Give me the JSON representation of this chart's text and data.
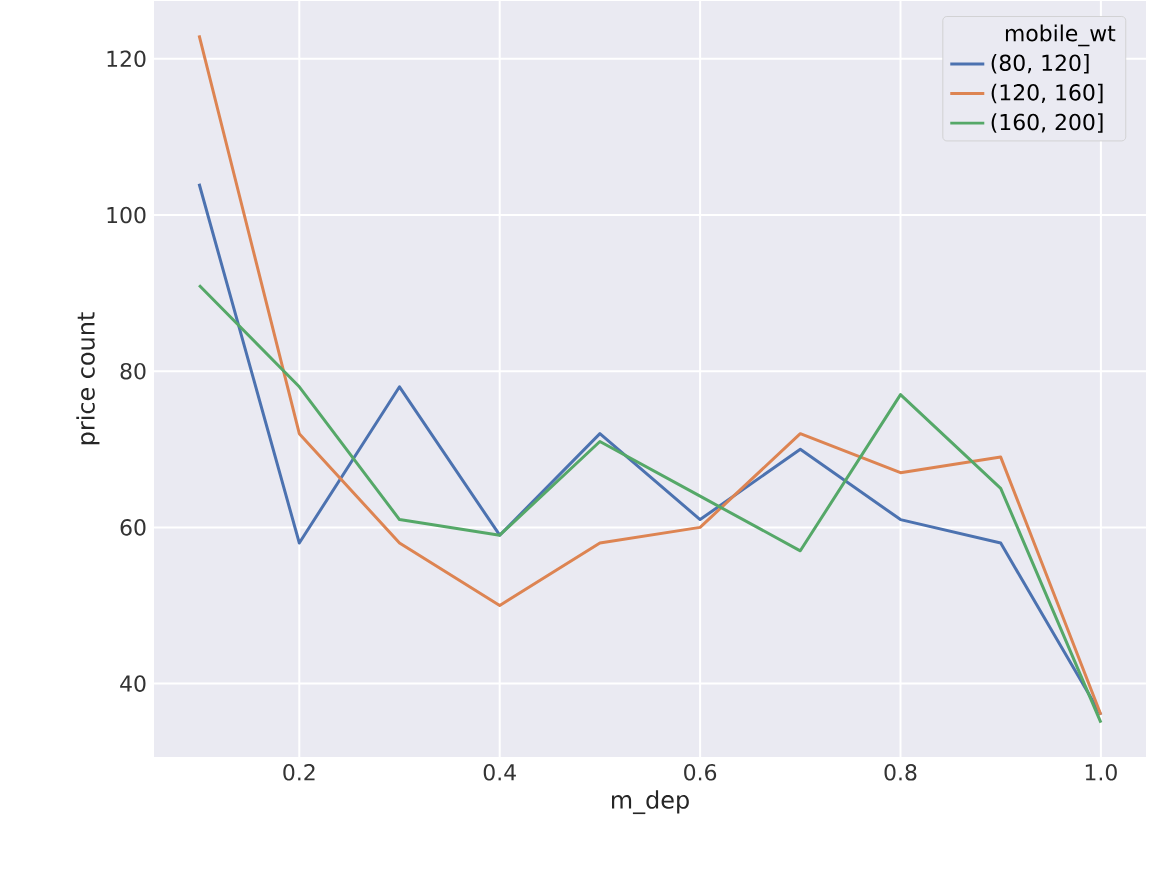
{
  "chart_data": {
    "type": "line",
    "xlabel": "m_dep",
    "ylabel": "price count",
    "legend_title": "mobile_wt",
    "x": [
      0.1,
      0.2,
      0.3,
      0.4,
      0.5,
      0.6,
      0.7,
      0.8,
      0.9,
      1.0
    ],
    "series": [
      {
        "name": "(80, 120]",
        "color": "#4c72b0",
        "values": [
          104,
          58,
          78,
          59,
          72,
          61,
          70,
          61,
          58,
          36
        ]
      },
      {
        "name": "(120, 160]",
        "color": "#dd8452",
        "values": [
          123,
          72,
          58,
          50,
          58,
          60,
          72,
          67,
          69,
          36
        ]
      },
      {
        "name": "(160, 200]",
        "color": "#55a868",
        "values": [
          91,
          78,
          61,
          59,
          71,
          64,
          57,
          77,
          65,
          35
        ]
      }
    ],
    "xlim": [
      0.055,
      1.045
    ],
    "ylim": [
      30.6,
      127.4
    ],
    "xticks": [
      0.2,
      0.4,
      0.6,
      0.8,
      {
        "value": 1.0,
        "label": "1.0"
      }
    ],
    "yticks": [
      40,
      60,
      80,
      100,
      120
    ],
    "grid": true,
    "legend": "top right",
    "marker": "none",
    "line_style": "solid"
  }
}
